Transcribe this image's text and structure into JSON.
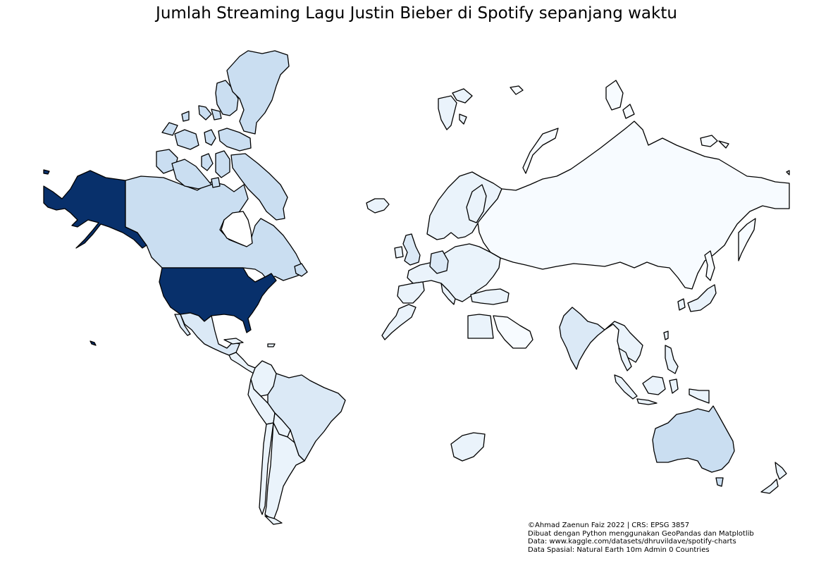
{
  "title": "Jumlah Streaming Lagu Justin Bieber di Spotify sepanjang waktu",
  "credits": [
    "©Ahmad Zaenun Faiz 2022 | CRS: EPSG 3857",
    "Dibuat dengan Python menggunakan GeoPandas dan Matplotlib",
    "Data: www.kaggle.com/datasets/dhruvildave/spotify-charts",
    "Data Spasial: Natural Earth 10m Admin 0 Countries"
  ],
  "colormap": "Blues",
  "colors": {
    "no_data": "#ffffff",
    "very_low": "#f7fbff",
    "low": "#eaf3fb",
    "low_mid": "#dbe9f6",
    "mid": "#cadef1",
    "max": "#08306b",
    "border": "#000000"
  },
  "regions": [
    {
      "name": "United States",
      "level": "max"
    },
    {
      "name": "Alaska",
      "level": "max"
    },
    {
      "name": "Canada",
      "level": "mid"
    },
    {
      "name": "Greenland",
      "level": "mid"
    },
    {
      "name": "Mexico",
      "level": "low_mid"
    },
    {
      "name": "Brazil",
      "level": "low_mid"
    },
    {
      "name": "Australia",
      "level": "mid"
    },
    {
      "name": "India",
      "level": "low_mid"
    },
    {
      "name": "Russia",
      "level": "very_low"
    },
    {
      "name": "Europe",
      "level": "low"
    },
    {
      "name": "United Kingdom",
      "level": "low_mid"
    },
    {
      "name": "Germany",
      "level": "low_mid"
    },
    {
      "name": "Spain",
      "level": "low"
    },
    {
      "name": "Scandinavia",
      "level": "low"
    },
    {
      "name": "Turkey",
      "level": "low"
    },
    {
      "name": "Saudi Arabia",
      "level": "very_low"
    },
    {
      "name": "Egypt",
      "level": "low"
    },
    {
      "name": "Central America",
      "level": "low"
    },
    {
      "name": "Colombia",
      "level": "low"
    },
    {
      "name": "Peru",
      "level": "low"
    },
    {
      "name": "Chile",
      "level": "low"
    },
    {
      "name": "Argentina",
      "level": "low"
    },
    {
      "name": "Southeast Asia",
      "level": "low"
    },
    {
      "name": "Indonesia",
      "level": "low"
    },
    {
      "name": "Philippines",
      "level": "low"
    },
    {
      "name": "New Zealand",
      "level": "low"
    },
    {
      "name": "South Africa",
      "level": "low"
    },
    {
      "name": "Japan",
      "level": "low"
    },
    {
      "name": "Taiwan",
      "level": "low"
    },
    {
      "name": "Morocco",
      "level": "low"
    },
    {
      "name": "Iceland",
      "level": "low"
    },
    {
      "name": "Svalbard",
      "level": "low"
    }
  ]
}
